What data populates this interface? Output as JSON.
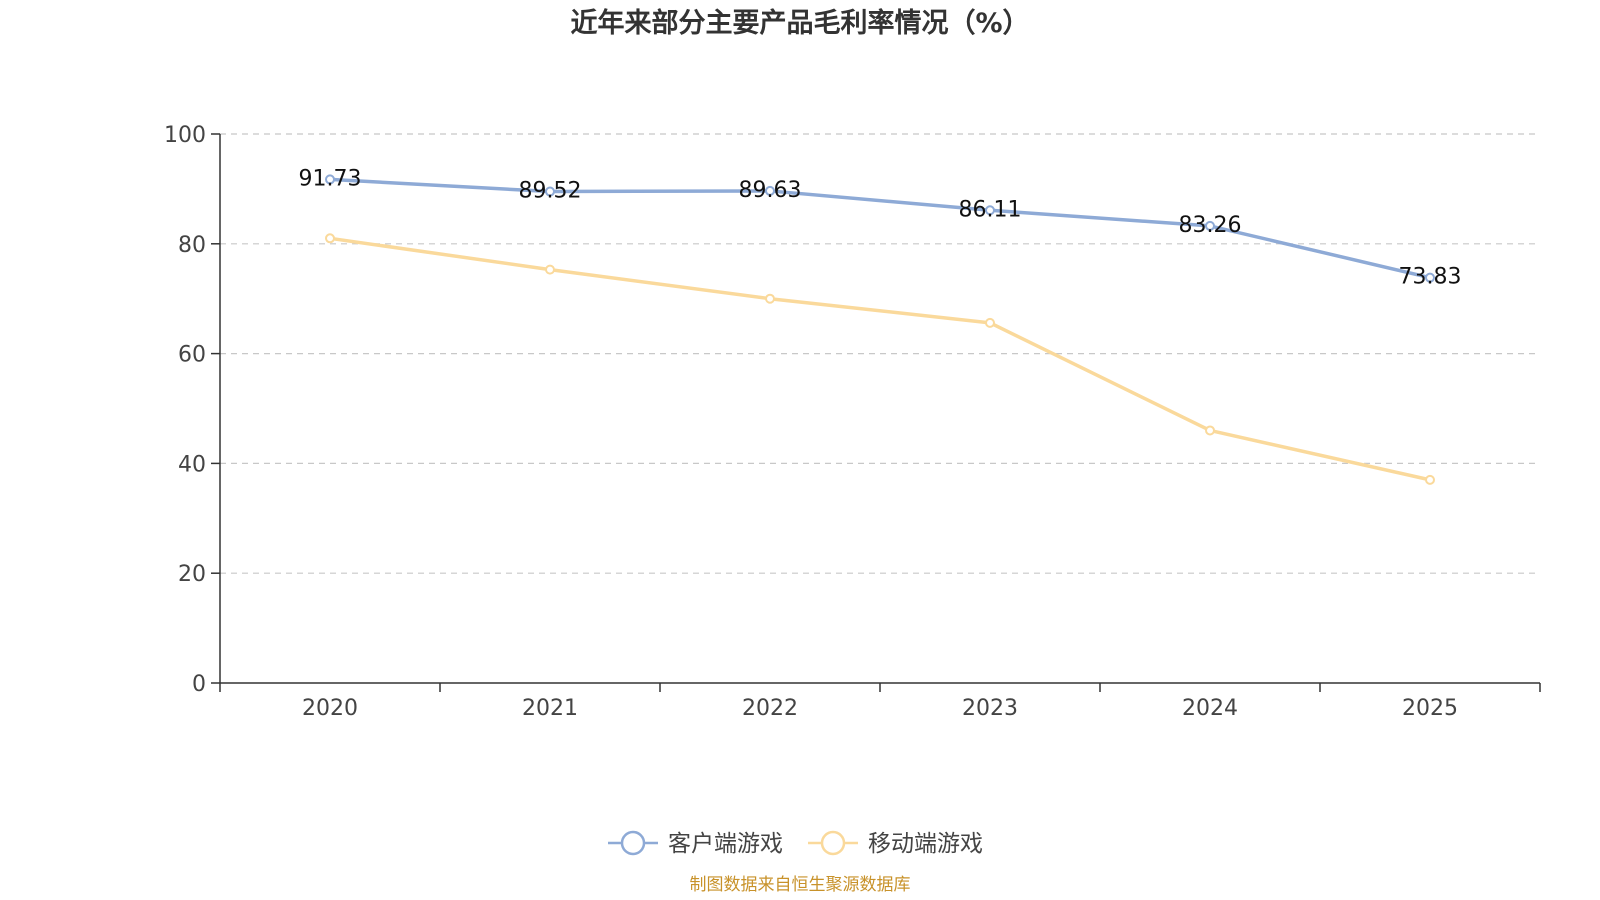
{
  "chart_data": {
    "type": "line",
    "title": "近年来部分主要产品毛利率情况（%）",
    "categories": [
      "2020",
      "2021",
      "2022",
      "2023",
      "2024",
      "2025"
    ],
    "series": [
      {
        "name": "客户端游戏",
        "values": [
          91.73,
          89.52,
          89.63,
          86.11,
          83.26,
          73.83
        ],
        "data_labels": [
          "91.73",
          "89.52",
          "89.63",
          "86.11",
          "83.26",
          "73.83"
        ],
        "color": "#8eaad6",
        "show_labels": true
      },
      {
        "name": "移动端游戏",
        "values": [
          81.0,
          75.3,
          70.0,
          65.6,
          46.0,
          37.0
        ],
        "color": "#fad99b",
        "show_labels": false
      }
    ],
    "ylim": [
      0,
      100
    ],
    "yticks": [
      0,
      20,
      40,
      60,
      80,
      100
    ],
    "ytick_labels": [
      "0",
      "20",
      "40",
      "60",
      "80",
      "100"
    ],
    "grid": true,
    "xlabel": "",
    "ylabel": "",
    "legend_position": "bottom-center",
    "source": "制图数据来自恒生聚源数据库"
  }
}
